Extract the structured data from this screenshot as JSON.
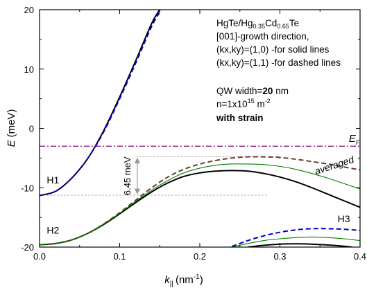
{
  "chart_data": {
    "type": "line",
    "xlabel": {
      "main": "k",
      "sub": "||",
      "unit": "(nm",
      "sup": "-1",
      "close": ")"
    },
    "ylabel": {
      "main": "E",
      "unit": "(meV)"
    },
    "xlim": [
      0.0,
      0.4
    ],
    "ylim": [
      -20,
      20
    ],
    "x_ticks": [
      0.0,
      0.1,
      0.2,
      0.3,
      0.4
    ],
    "x_tick_labels": [
      "0.0",
      "0.1",
      "0.2",
      "0.3",
      "0.4"
    ],
    "y_ticks": [
      -20,
      -10,
      0,
      10,
      20
    ],
    "y_tick_labels": [
      "-20",
      "-10",
      "0",
      "10",
      "20"
    ],
    "fermi_level": {
      "y": -3.0,
      "label_main": "E",
      "label_sub": "F",
      "color": "#800080"
    },
    "gap_annotation": {
      "text": "6.45 meV",
      "y_top": -4.8,
      "y_bottom": -11.25,
      "x": 0.122
    },
    "band_labels": [
      {
        "text": "H1",
        "x": 0.009,
        "y": -9.3
      },
      {
        "text": "H2",
        "x": 0.009,
        "y": -17.7
      },
      {
        "text": "H3",
        "x": 0.372,
        "y": -15.8
      },
      {
        "text": "averaged",
        "x": 0.345,
        "y": -7.8,
        "color": "#007f00"
      }
    ],
    "info_lines": {
      "material": {
        "a": "HgTe/Hg",
        "b": "0.35",
        "c": "Cd",
        "d": "0.65",
        "e": "Te"
      },
      "growth": "[001]-growth direction,",
      "solid": "(kx,ky)=(1,0) -for solid lines",
      "dashed": "(kx,ky)=(1,1) -for dashed lines",
      "width": {
        "prefix": "QW width=",
        "value": "20",
        "unit": " nm"
      },
      "density": {
        "prefix": "n=1x10",
        "sup": "15",
        "unit": " m",
        "unit_sup": "-2"
      },
      "strain": "with strain"
    },
    "colors": {
      "solid": "#000000",
      "dashed_blue": "#0000cc",
      "dashed_brown": "#6b3a2a",
      "averaged": "#007f00",
      "fermi": "#800080",
      "guide": "#999999"
    },
    "series": [
      {
        "style": "solid",
        "x": [
          0.0,
          0.02,
          0.04,
          0.06,
          0.08,
          0.1,
          0.12,
          0.14,
          0.15
        ],
        "y": [
          -11.3,
          -10.6,
          -8.4,
          -5.1,
          -0.4,
          5.3,
          11.4,
          17.7,
          20.0
        ]
      },
      {
        "style": "dashed_blue",
        "x": [
          0.0,
          0.02,
          0.04,
          0.06,
          0.08,
          0.1,
          0.12,
          0.14,
          0.152
        ],
        "y": [
          -11.3,
          -10.6,
          -8.4,
          -5.1,
          -0.6,
          5.0,
          11.0,
          17.2,
          20.0
        ]
      },
      {
        "style": "solid",
        "x": [
          0.0,
          0.02,
          0.04,
          0.06,
          0.08,
          0.1,
          0.12,
          0.14,
          0.16,
          0.18,
          0.2,
          0.22,
          0.24,
          0.26,
          0.28,
          0.3,
          0.32,
          0.34,
          0.36,
          0.38,
          0.4
        ],
        "y": [
          -19.6,
          -19.4,
          -18.8,
          -17.7,
          -16.2,
          -14.4,
          -12.5,
          -10.7,
          -9.2,
          -8.1,
          -7.5,
          -7.2,
          -7.1,
          -7.2,
          -7.6,
          -8.2,
          -9.0,
          -10.0,
          -11.1,
          -12.2,
          -13.3
        ]
      },
      {
        "style": "dashed_brown",
        "x": [
          0.0,
          0.02,
          0.04,
          0.06,
          0.08,
          0.1,
          0.12,
          0.14,
          0.16,
          0.18,
          0.2,
          0.22,
          0.24,
          0.26,
          0.28,
          0.3,
          0.32,
          0.34,
          0.36,
          0.38,
          0.4
        ],
        "y": [
          -19.6,
          -19.4,
          -18.8,
          -17.7,
          -16.1,
          -14.2,
          -12.1,
          -10.0,
          -8.2,
          -6.9,
          -6.0,
          -5.4,
          -5.0,
          -4.8,
          -4.8,
          -4.9,
          -5.2,
          -5.6,
          -6.0,
          -6.5,
          -7.0
        ]
      },
      {
        "style": "averaged",
        "x": [
          0.0,
          0.02,
          0.04,
          0.06,
          0.08,
          0.1,
          0.12,
          0.14,
          0.16,
          0.18,
          0.2,
          0.22,
          0.24,
          0.26,
          0.28,
          0.3,
          0.32,
          0.34,
          0.36,
          0.38,
          0.4
        ],
        "y": [
          -19.6,
          -19.4,
          -18.8,
          -17.7,
          -16.1,
          -14.3,
          -12.3,
          -10.4,
          -8.8,
          -7.5,
          -6.7,
          -6.2,
          -6.0,
          -6.0,
          -6.1,
          -6.4,
          -6.9,
          -7.6,
          -8.4,
          -9.3,
          -10.2
        ]
      },
      {
        "style": "dashed_blue",
        "x": [
          0.24,
          0.26,
          0.28,
          0.3,
          0.32,
          0.34,
          0.36,
          0.38,
          0.4
        ],
        "y": [
          -19.9,
          -18.9,
          -18.1,
          -17.5,
          -17.1,
          -16.9,
          -16.9,
          -17.0,
          -17.2
        ]
      },
      {
        "style": "averaged",
        "x": [
          0.24,
          0.26,
          0.28,
          0.3,
          0.32,
          0.34,
          0.36,
          0.38,
          0.4
        ],
        "y": [
          -20.0,
          -19.4,
          -18.9,
          -18.6,
          -18.4,
          -18.3,
          -18.4,
          -18.6,
          -18.9
        ]
      },
      {
        "style": "solid",
        "x": [
          0.26,
          0.28,
          0.3,
          0.32,
          0.34,
          0.36,
          0.38,
          0.39
        ],
        "y": [
          -20.0,
          -19.7,
          -19.5,
          -19.45,
          -19.5,
          -19.65,
          -19.85,
          -20.0
        ]
      }
    ]
  }
}
